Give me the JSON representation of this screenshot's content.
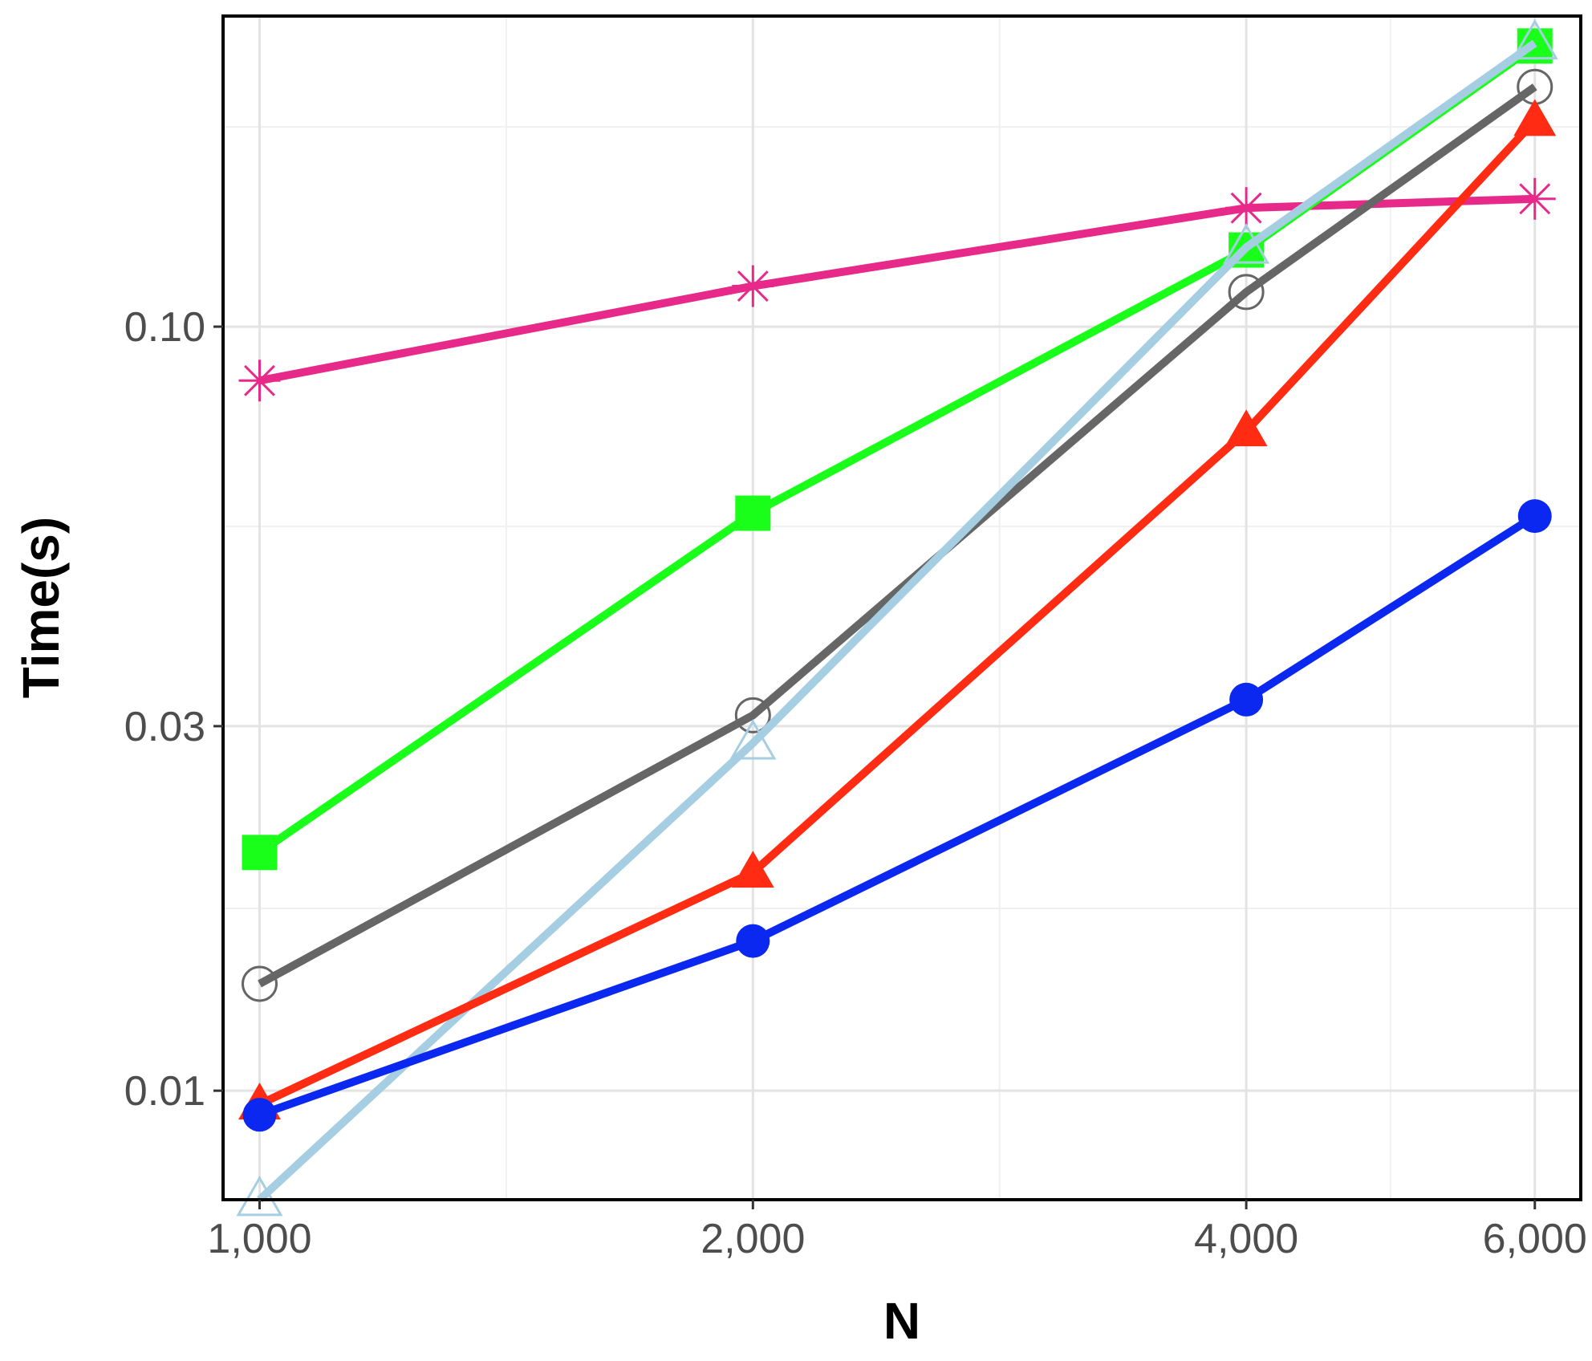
{
  "chart_data": {
    "type": "line",
    "xlabel": "N",
    "ylabel": "Time(s)",
    "x_scale": "log",
    "y_scale": "log",
    "x_ticks": [
      1000,
      2000,
      4000,
      6000
    ],
    "x_tick_labels": [
      "1,000",
      "2,000",
      "4,000",
      "6,000"
    ],
    "y_ticks": [
      0.01,
      0.03,
      0.1
    ],
    "y_tick_labels": [
      "0.01",
      "0.03",
      "0.10"
    ],
    "xlim": [
      950,
      6400
    ],
    "ylim": [
      0.0072,
      0.255
    ],
    "grid": true,
    "legend": "none",
    "x": [
      1000,
      2000,
      4000,
      6000
    ],
    "series": [
      {
        "color": "#E7298A",
        "marker": "asterisk",
        "values": [
          0.085,
          0.113,
          0.143,
          0.147
        ]
      },
      {
        "color": "#1AFF1A",
        "marker": "square-filled",
        "values": [
          0.0205,
          0.057,
          0.126,
          0.233
        ]
      },
      {
        "color": "#666666",
        "marker": "circle-open",
        "values": [
          0.0138,
          0.031,
          0.111,
          0.206
        ]
      },
      {
        "color": "#A6CEE3",
        "marker": "triangle-open",
        "values": [
          0.0072,
          0.0285,
          0.127,
          0.235
        ]
      },
      {
        "color": "#FF2B12",
        "marker": "triangle-filled",
        "values": [
          0.0096,
          0.0193,
          0.073,
          0.186
        ]
      },
      {
        "color": "#0A28F0",
        "marker": "circle-filled",
        "values": [
          0.0093,
          0.0157,
          0.0325,
          0.0565
        ]
      }
    ]
  }
}
